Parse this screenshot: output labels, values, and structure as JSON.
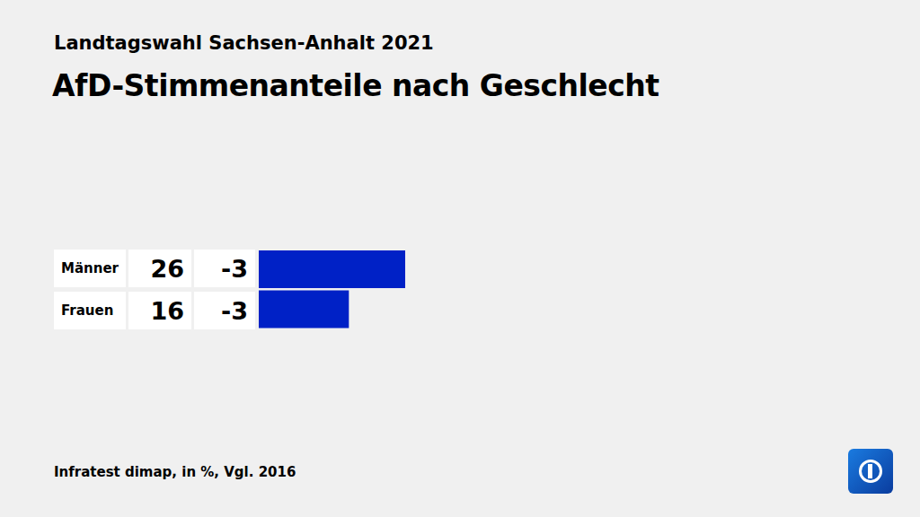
{
  "chart_data": {
    "type": "bar",
    "orientation": "horizontal",
    "subtitle": "Landtagswahl Sachsen-Anhalt 2021",
    "title": "AfD-Stimmenanteile nach Geschlecht",
    "categories": [
      "Männer",
      "Frauen"
    ],
    "values": [
      26,
      16
    ],
    "changes": [
      -3,
      -3
    ],
    "color": "#0021c6",
    "source": "Infratest dimap, in %, Vgl. 2016",
    "data_labels": true,
    "tick_labels": false
  }
}
